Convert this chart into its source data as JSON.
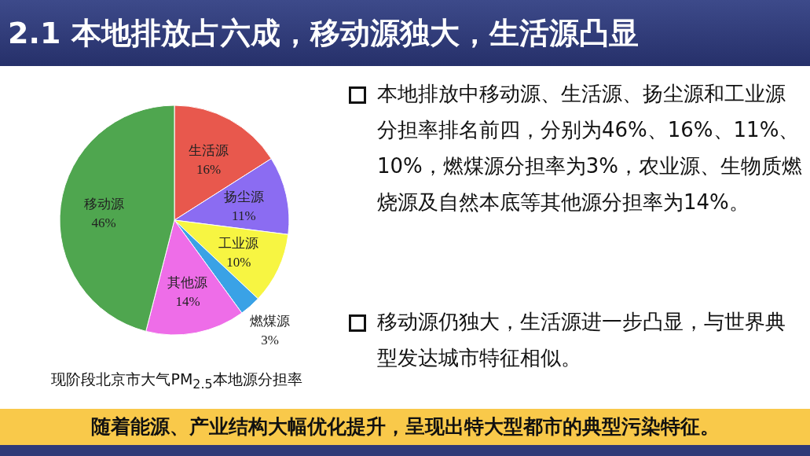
{
  "chart_data": {
    "type": "pie",
    "title": "2.1 本地排放占六成，移动源独大，生活源凸显",
    "categories": [
      "生活源",
      "扬尘源",
      "工业源",
      "燃煤源",
      "其他源",
      "移动源"
    ],
    "values": [
      16,
      11,
      10,
      3,
      14,
      46
    ],
    "colors": [
      "#e8584d",
      "#8b6cf2",
      "#f7f542",
      "#3aa2e6",
      "#ee6de8",
      "#4fa64f"
    ],
    "value_labels": [
      "16%",
      "11%",
      "10%",
      "3%",
      "14%",
      "46%"
    ],
    "annotations": [
      "本地排放中移动源、生活源、扬尘源和工业源分担率排名前四，分别为46%、16%、11%、10%，燃煤源分担率为3%，农业源、生物质燃烧源及自然本底等其他源分担率为14%。",
      "移动源仍独大，生活源进一步凸显，与世界典型发达城市特征相似。",
      "现阶段北京市大气PM$_{2.5}$本地源分担率",
      "随着能源、产业结构大幅优化提升，呈现出特大型都市的典型污染特征。"
    ]
  }
}
